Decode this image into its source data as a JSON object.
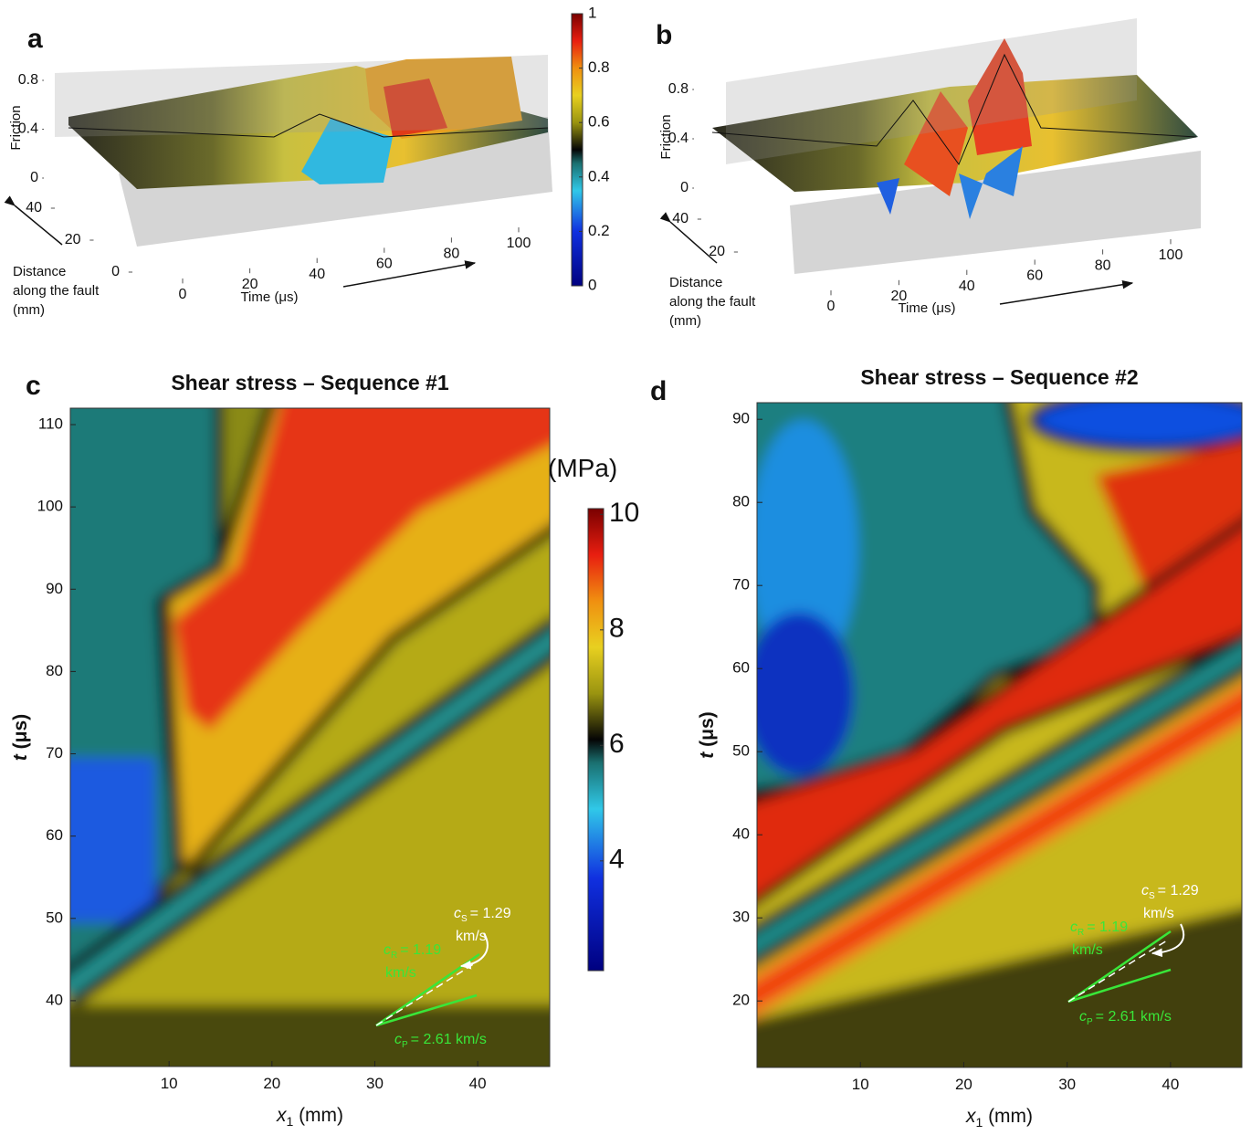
{
  "figure": {
    "panels": [
      {
        "label": "a",
        "zlabel": "Friction",
        "zlim": [
          0,
          0.8
        ],
        "zticks": [
          0,
          0.4,
          0.8
        ],
        "ylabel": [
          "Distance",
          "along the fault",
          "(mm)"
        ],
        "ylim": [
          0,
          40
        ],
        "yticks": [
          0,
          20,
          40
        ],
        "xlabel": "Time (μs)",
        "xlim": [
          0,
          100
        ],
        "xticks": [
          0,
          20,
          40,
          60,
          80,
          100
        ],
        "colorbar": {
          "lim": [
            0,
            1
          ],
          "ticks": [
            0,
            0.2,
            0.4,
            0.6,
            0.8,
            1
          ]
        }
      },
      {
        "label": "b",
        "zlabel": "Friction",
        "zlim": [
          0,
          0.8
        ],
        "zticks": [
          0,
          0.4,
          0.8
        ],
        "ylabel": [
          "Distance",
          "along the fault",
          "(mm)"
        ],
        "ylim": [
          0,
          40
        ],
        "yticks": [
          20,
          40
        ],
        "xlabel": "Time (μs)",
        "xlim": [
          0,
          100
        ],
        "xticks": [
          0,
          20,
          40,
          60,
          80,
          100
        ]
      },
      {
        "label": "c",
        "title": "Shear stress – Sequence #1",
        "xlabel": {
          "symbol": "x",
          "sub": "1",
          "unit": " (mm)"
        },
        "xlim": [
          0.4,
          47
        ],
        "xticks": [
          10,
          20,
          30,
          40
        ],
        "ylabel": {
          "symbol": "t",
          "unit": " (μs)"
        },
        "ylim": [
          32,
          112
        ],
        "yticks": [
          40,
          50,
          60,
          70,
          80,
          90,
          100,
          110
        ],
        "colorbar": {
          "unit": "(MPa)",
          "lim": [
            2.1,
            10.1
          ],
          "ticks": [
            4,
            6,
            8,
            10
          ]
        },
        "annotations": [
          {
            "symbol": "c",
            "sub": "S",
            "text": [
              "= 1.29",
              "km/s"
            ],
            "color": "#ffffff"
          },
          {
            "symbol": "c",
            "sub": "R",
            "text": [
              "= 1.19",
              "km/s"
            ],
            "color": "#39e639"
          },
          {
            "symbol": "c",
            "sub": "P",
            "text": [
              "= 2.61 km/s"
            ],
            "color": "#39e639"
          }
        ]
      },
      {
        "label": "d",
        "title": "Shear stress – Sequence #2",
        "xlabel": {
          "symbol": "x",
          "sub": "1",
          "unit": " (mm)"
        },
        "xlim": [
          0,
          46.9
        ],
        "xticks": [
          10,
          20,
          30,
          40
        ],
        "ylabel": {
          "symbol": "t",
          "unit": " (μs)"
        },
        "ylim": [
          12,
          92
        ],
        "yticks": [
          20,
          30,
          40,
          50,
          60,
          70,
          80,
          90
        ],
        "annotations": [
          {
            "symbol": "c",
            "sub": "S",
            "text": [
              "= 1.29",
              "km/s"
            ],
            "color": "#ffffff"
          },
          {
            "symbol": "c",
            "sub": "R",
            "text": [
              "= 1.19",
              "km/s"
            ],
            "color": "#39e639"
          },
          {
            "symbol": "c",
            "sub": "P",
            "text": [
              "= 2.61 km/s"
            ],
            "color": "#39e639"
          }
        ]
      }
    ]
  }
}
